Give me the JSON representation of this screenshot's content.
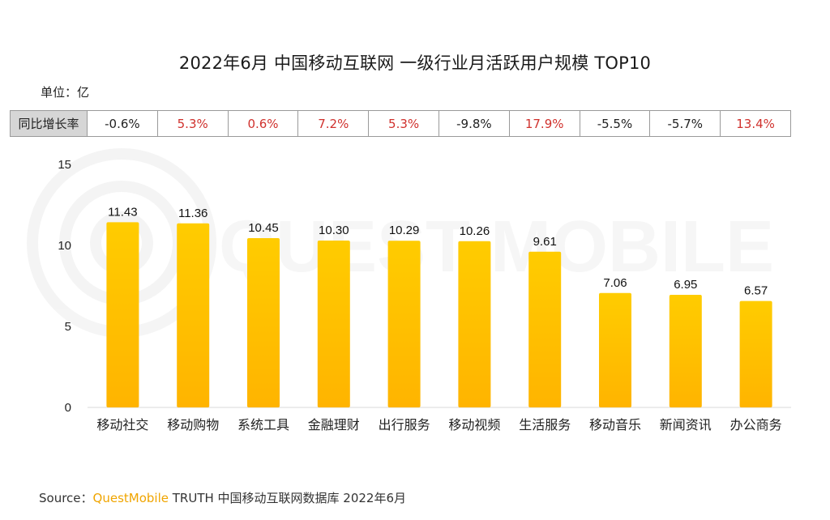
{
  "title": "2022年6月 中国移动互联网 一级行业月活跃用户规模 TOP10",
  "unit": "单位：亿",
  "growth": {
    "header": "同比增长率",
    "values": [
      "-0.6%",
      "5.3%",
      "0.6%",
      "7.2%",
      "5.3%",
      "-9.8%",
      "17.9%",
      "-5.5%",
      "-5.7%",
      "13.4%"
    ],
    "colors": [
      "#222222",
      "#d0312d",
      "#d0312d",
      "#d0312d",
      "#d0312d",
      "#222222",
      "#d0312d",
      "#222222",
      "#222222",
      "#d0312d"
    ]
  },
  "chart_data": {
    "type": "bar",
    "categories": [
      "移动社交",
      "移动购物",
      "系统工具",
      "金融理财",
      "出行服务",
      "移动视频",
      "生活服务",
      "移动音乐",
      "新闻资讯",
      "办公商务"
    ],
    "values": [
      11.43,
      11.36,
      10.45,
      10.3,
      10.29,
      10.26,
      9.61,
      7.06,
      6.95,
      6.57
    ],
    "value_labels": [
      "11.43",
      "11.36",
      "10.45",
      "10.30",
      "10.29",
      "10.26",
      "9.61",
      "7.06",
      "6.95",
      "6.57"
    ],
    "ylim": [
      0,
      15
    ],
    "yticks": [
      "0",
      "5",
      "10",
      "15"
    ],
    "ytick_values": [
      0,
      5,
      10,
      15
    ],
    "grid": false,
    "bar_color_top": "#ffcc00",
    "bar_color_bottom": "#ffb400"
  },
  "watermark": "QUEST MOBILE",
  "source": {
    "prefix": "Source：",
    "brand": "QuestMobile",
    "rest": " TRUTH 中国移动互联网数据库 2022年6月"
  }
}
